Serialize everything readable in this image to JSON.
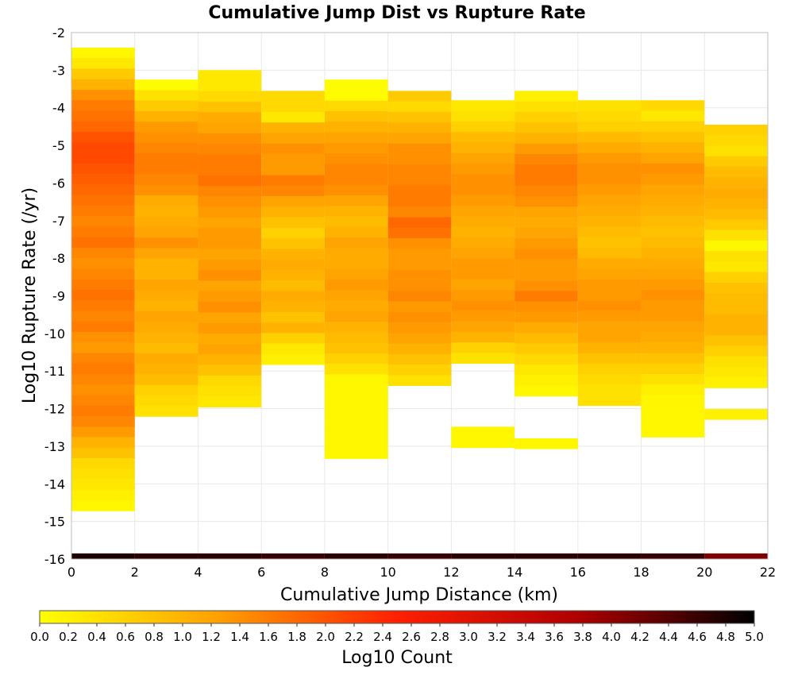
{
  "chart_data": {
    "type": "heatmap",
    "title": "Cumulative Jump Dist vs Rupture Rate",
    "xlabel": "Cumulative Jump Distance (km)",
    "ylabel": "Log10 Rupture Rate (/yr)",
    "xlim": [
      0,
      22
    ],
    "ylim": [
      -16,
      -2
    ],
    "x_ticks": [
      "0",
      "2",
      "4",
      "6",
      "8",
      "10",
      "12",
      "14",
      "16",
      "18",
      "20",
      "22"
    ],
    "y_ticks": [
      "-2",
      "-3",
      "-4",
      "-5",
      "-6",
      "-7",
      "-8",
      "-9",
      "-10",
      "-11",
      "-12",
      "-13",
      "-14",
      "-15",
      "-16"
    ],
    "x_bin_width": 2,
    "y_bin_width": 0.28,
    "grid": true,
    "colorbar": {
      "label": "Log10 Count",
      "range": [
        0,
        5
      ],
      "ticks": [
        "0.0",
        "0.2",
        "0.4",
        "0.6",
        "0.8",
        "1.0",
        "1.2",
        "1.4",
        "1.6",
        "1.8",
        "2.0",
        "2.2",
        "2.4",
        "2.6",
        "2.8",
        "3.0",
        "3.2",
        "3.4",
        "3.6",
        "3.8",
        "4.0",
        "4.2",
        "4.4",
        "4.6",
        "4.8",
        "5.0"
      ],
      "colors": [
        "#ffff00",
        "#ffa000",
        "#ff2000",
        "#b00000",
        "#000000"
      ],
      "placement": "bottom"
    },
    "columns": [
      {
        "x0": 0,
        "y_top": -2.4,
        "values": [
          0.1,
          0.3,
          0.7,
          1.0,
          1.4,
          1.6,
          1.7,
          1.8,
          2.0,
          2.1,
          2.1,
          2.0,
          1.9,
          1.8,
          1.7,
          1.6,
          1.5,
          1.6,
          1.7,
          1.5,
          1.4,
          1.5,
          1.6,
          1.7,
          1.6,
          1.5,
          1.6,
          1.4,
          1.3,
          1.5,
          1.6,
          1.5,
          1.4,
          1.5,
          1.6,
          1.5,
          1.3,
          1.0,
          0.8,
          0.5,
          0.4,
          0.3,
          0.2,
          0.1
        ]
      },
      {
        "x0": 2,
        "y_top": -3.25,
        "values": [
          0.05,
          0.4,
          0.7,
          1.0,
          1.3,
          1.4,
          1.5,
          1.6,
          1.6,
          1.5,
          1.4,
          1.1,
          1.0,
          1.1,
          1.2,
          1.4,
          1.2,
          1.0,
          1.0,
          1.2,
          1.1,
          1.0,
          1.2,
          1.1,
          1.0,
          0.9,
          1.1,
          1.0,
          0.9,
          0.6,
          0.5,
          0.4
        ]
      },
      {
        "x0": 4,
        "y_top": -3.0,
        "values": [
          0.3,
          0.3,
          0.5,
          0.8,
          1.1,
          1.2,
          1.4,
          1.5,
          1.6,
          1.6,
          1.7,
          1.5,
          1.4,
          1.3,
          1.2,
          1.3,
          1.3,
          1.2,
          1.3,
          1.4,
          1.2,
          1.3,
          1.4,
          1.2,
          1.3,
          1.1,
          1.2,
          1.0,
          0.8,
          0.5,
          0.4,
          0.3
        ]
      },
      {
        "x0": 6,
        "y_top": -3.55,
        "values": [
          0.5,
          0.5,
          0.3,
          1.0,
          1.2,
          1.4,
          1.3,
          1.3,
          1.6,
          1.5,
          1.2,
          1.0,
          0.8,
          0.6,
          0.8,
          1.0,
          1.1,
          1.0,
          0.9,
          1.1,
          1.0,
          0.8,
          1.0,
          0.6,
          0.3,
          0.2
        ]
      },
      {
        "x0": 8,
        "y_top": -3.25,
        "values": [
          0.05,
          0.05,
          0.5,
          0.8,
          1.0,
          1.2,
          1.3,
          1.4,
          1.5,
          1.5,
          1.4,
          1.2,
          1.0,
          0.9,
          1.0,
          1.2,
          1.1,
          1.1,
          1.2,
          1.3,
          1.2,
          1.1,
          1.2,
          1.0,
          0.9,
          0.8,
          0.6,
          0.4,
          0.1,
          0.1,
          0.1,
          0.1,
          0.1,
          0.1,
          0.1,
          0.1
        ]
      },
      {
        "x0": 10,
        "y_top": -3.55,
        "values": [
          0.7,
          0.5,
          0.8,
          1.0,
          1.2,
          1.4,
          1.4,
          1.5,
          1.5,
          1.6,
          1.6,
          1.5,
          1.8,
          1.7,
          1.4,
          1.3,
          1.3,
          1.4,
          1.4,
          1.5,
          1.3,
          1.4,
          1.3,
          1.2,
          1.0,
          0.8,
          0.6,
          0.4
        ]
      },
      {
        "x0": 12,
        "y_top": -3.8,
        "values": [
          0.3,
          0.4,
          0.6,
          0.9,
          1.0,
          1.2,
          1.3,
          1.4,
          1.4,
          1.3,
          1.2,
          1.1,
          1.0,
          1.1,
          1.2,
          1.3,
          1.3,
          1.2,
          1.3,
          1.4,
          1.3,
          1.2,
          1.0,
          0.6,
          0.4,
          -1,
          -1,
          -1,
          -1,
          -1,
          -1,
          0.1,
          0.1
        ]
      },
      {
        "x0": 14,
        "y_top": -3.55,
        "values": [
          0.2,
          0.4,
          0.6,
          0.8,
          1.0,
          1.3,
          1.5,
          1.6,
          1.6,
          1.5,
          1.4,
          1.2,
          1.1,
          1.2,
          1.3,
          1.4,
          1.3,
          1.3,
          1.4,
          1.6,
          1.4,
          1.3,
          1.1,
          0.9,
          0.7,
          0.5,
          0.3,
          0.2,
          0.1,
          -1,
          -1,
          -1,
          -1,
          0.1
        ]
      },
      {
        "x0": 16,
        "y_top": -3.8,
        "values": [
          0.4,
          0.5,
          0.6,
          0.9,
          1.1,
          1.3,
          1.4,
          1.4,
          1.3,
          1.2,
          1.1,
          1.0,
          0.9,
          0.8,
          0.9,
          1.1,
          1.2,
          1.3,
          1.3,
          1.4,
          1.3,
          1.2,
          1.2,
          1.0,
          0.8,
          0.6,
          0.5,
          0.4,
          0.4
        ]
      },
      {
        "x0": 18,
        "y_top": -3.8,
        "values": [
          0.5,
          0.3,
          0.6,
          0.8,
          1.0,
          1.2,
          1.4,
          1.3,
          1.2,
          1.1,
          1.0,
          0.9,
          0.8,
          0.9,
          1.0,
          1.1,
          1.2,
          1.3,
          1.4,
          1.3,
          1.3,
          1.2,
          1.1,
          1.0,
          0.8,
          0.6,
          0.4,
          0.2,
          0.1,
          0.1,
          0.1,
          0.1
        ]
      },
      {
        "x0": 20,
        "y_top": -4.45,
        "values": [
          0.6,
          0.5,
          0.4,
          0.7,
          0.9,
          1.0,
          1.1,
          1.0,
          0.9,
          0.7,
          0.4,
          0.1,
          0.4,
          0.3,
          0.6,
          0.8,
          0.9,
          0.9,
          1.0,
          1.0,
          0.8,
          0.6,
          0.4,
          0.3,
          0.2,
          -1,
          -1,
          0.2
        ]
      }
    ],
    "bottom_row": {
      "y": -16,
      "values": [
        4.8,
        4.7,
        4.7,
        4.6,
        4.7,
        4.6,
        4.7,
        4.7,
        4.7,
        4.6,
        4.1
      ]
    }
  }
}
